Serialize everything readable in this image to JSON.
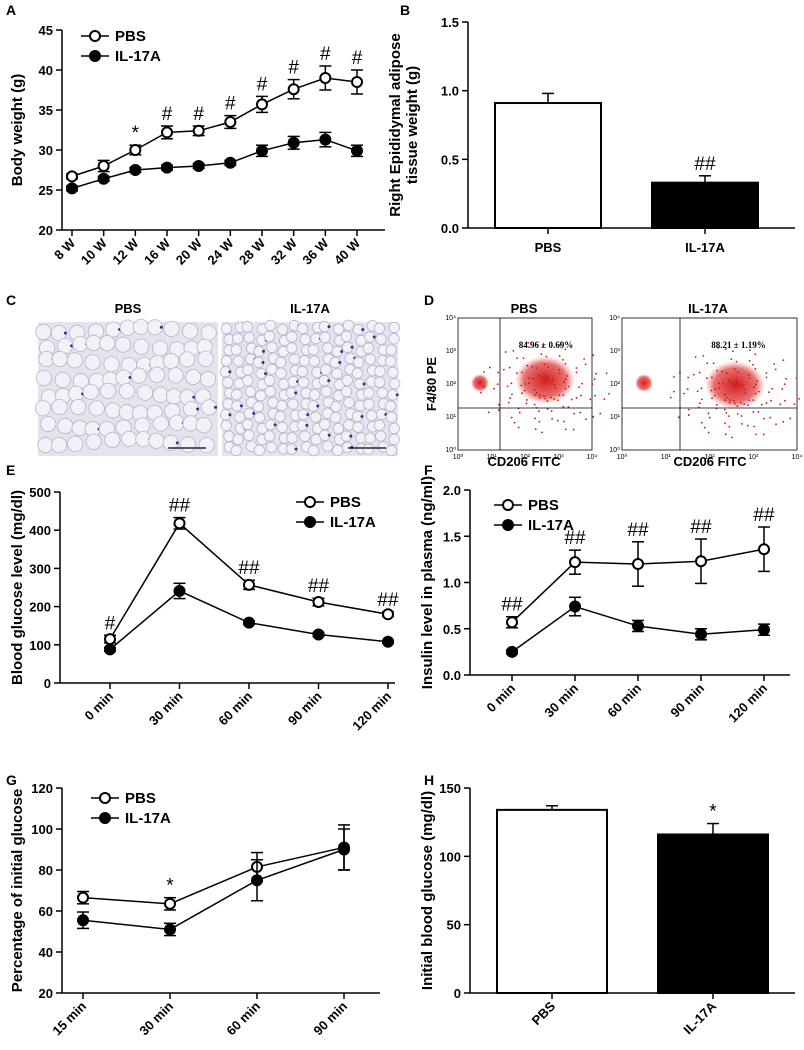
{
  "chart_data": [
    {
      "panel": "A",
      "type": "line",
      "ylabel": [
        "Body weight (g)"
      ],
      "categories": [
        "8 W",
        "10 W",
        "12 W",
        "16 W",
        "20 W",
        "24 W",
        "28 W",
        "32 W",
        "36 W",
        "40 W"
      ],
      "ylim": [
        20,
        45
      ],
      "yticks": [
        20,
        25,
        30,
        35,
        40,
        45
      ],
      "series": [
        {
          "name": "PBS",
          "color": "#000000",
          "marker_fill": "#ffffff",
          "values": [
            26.7,
            28,
            30,
            32.2,
            32.4,
            33.5,
            35.7,
            37.6,
            39,
            38.5
          ],
          "errors": [
            0.3,
            0.7,
            0.6,
            0.8,
            0.6,
            0.8,
            1,
            1.2,
            1.5,
            1.5
          ]
        },
        {
          "name": "IL-17A",
          "color": "#000000",
          "marker_fill": "#000000",
          "values": [
            25.2,
            26.4,
            27.5,
            27.8,
            28,
            28.4,
            29.9,
            30.9,
            31.3,
            29.9
          ],
          "errors": [
            0.3,
            0.3,
            0.3,
            0.3,
            0.3,
            0.3,
            0.7,
            0.8,
            0.9,
            0.7
          ]
        }
      ],
      "annotations": [
        null,
        null,
        "*",
        "#",
        "#",
        "#",
        "#",
        "#",
        "#",
        "#"
      ]
    },
    {
      "panel": "B",
      "type": "bar",
      "ylabel": [
        "Right Epididymal adipose",
        "tissue weight (g)"
      ],
      "categories": [
        "PBS",
        "IL-17A"
      ],
      "values": [
        0.91,
        0.33
      ],
      "errors": [
        0.07,
        0.05
      ],
      "colors": [
        "#ffffff",
        "#000000"
      ],
      "ylim": [
        0,
        1.5
      ],
      "yticks": [
        {
          "value": 0,
          "label": "0.0"
        },
        {
          "value": 0.5,
          "label": "0.5"
        },
        {
          "value": 1,
          "label": "1.0"
        },
        {
          "value": 1.5,
          "label": "1.5"
        }
      ],
      "annotations": [
        null,
        "##"
      ]
    },
    {
      "panel": "E",
      "type": "line",
      "ylabel": [
        "Blood glucose level (mg/dl)"
      ],
      "categories": [
        "0 min",
        "30 min",
        "60 min",
        "90 min",
        "120 min"
      ],
      "ylim": [
        0,
        500
      ],
      "yticks": [
        0,
        100,
        200,
        300,
        400,
        500
      ],
      "series": [
        {
          "name": "PBS",
          "color": "#000000",
          "marker_fill": "#ffffff",
          "values": [
            115,
            418,
            257,
            212,
            180
          ],
          "errors": [
            10,
            15,
            12,
            10,
            6
          ]
        },
        {
          "name": "IL-17A",
          "color": "#000000",
          "marker_fill": "#000000",
          "values": [
            88,
            241,
            158,
            127,
            108
          ],
          "errors": [
            5,
            20,
            5,
            5,
            4
          ]
        }
      ],
      "annotations": [
        "#",
        "##",
        "##",
        "##",
        "##"
      ]
    },
    {
      "panel": "F",
      "type": "line",
      "ylabel": [
        "Insulin level in plasma (ng/ml)"
      ],
      "categories": [
        "0 min",
        "30 min",
        "60 min",
        "90 min",
        "120 min"
      ],
      "ylim": [
        0,
        2
      ],
      "yticks": [
        {
          "value": 0,
          "label": "0.0"
        },
        {
          "value": 0.5,
          "label": "0.5"
        },
        {
          "value": 1,
          "label": "1.0"
        },
        {
          "value": 1.5,
          "label": "1.5"
        },
        {
          "value": 2,
          "label": "2.0"
        }
      ],
      "series": [
        {
          "name": "PBS",
          "color": "#000000",
          "marker_fill": "#ffffff",
          "values": [
            0.57,
            1.22,
            1.2,
            1.23,
            1.36
          ],
          "errors": [
            0.06,
            0.13,
            0.24,
            0.24,
            0.24
          ]
        },
        {
          "name": "IL-17A",
          "color": "#000000",
          "marker_fill": "#000000",
          "values": [
            0.25,
            0.74,
            0.53,
            0.44,
            0.49
          ],
          "errors": [
            0.02,
            0.1,
            0.06,
            0.06,
            0.06
          ]
        }
      ],
      "annotations": [
        "##",
        "##",
        "##",
        "##",
        "##"
      ]
    },
    {
      "panel": "G",
      "type": "line",
      "ylabel": [
        "Percentage of initial glucose"
      ],
      "categories": [
        "15 min",
        "30 min",
        "60 min",
        "90 min"
      ],
      "ylim": [
        20,
        120
      ],
      "yticks": [
        20,
        40,
        60,
        80,
        100,
        120
      ],
      "series": [
        {
          "name": "PBS",
          "color": "#000000",
          "marker_fill": "#ffffff",
          "values": [
            66.5,
            63.5,
            81.5,
            91
          ],
          "errors": [
            3,
            3,
            7,
            11
          ]
        },
        {
          "name": "IL-17A",
          "color": "#000000",
          "marker_fill": "#000000",
          "values": [
            55.5,
            51,
            75,
            90
          ],
          "errors": [
            4,
            3,
            10,
            10
          ]
        }
      ],
      "annotations": [
        null,
        "*",
        null,
        null
      ]
    },
    {
      "panel": "H",
      "type": "bar",
      "ylabel": [
        "Initial blood glucose (mg/dl)"
      ],
      "categories": [
        "PBS",
        "IL-17A"
      ],
      "values": [
        134,
        116
      ],
      "errors": [
        3,
        8
      ],
      "colors": [
        "#ffffff",
        "#000000"
      ],
      "ylim": [
        0,
        150
      ],
      "yticks": [
        0,
        50,
        100,
        150
      ],
      "annotations": [
        null,
        "*"
      ]
    }
  ],
  "panel_c": {
    "panel": "C",
    "titles": [
      "PBS",
      "IL-17A"
    ]
  },
  "panel_d": {
    "panel": "D",
    "titles": [
      "PBS",
      "IL-17A"
    ],
    "percentages": [
      "84.96 ± 0.69%",
      "88.21 ± 1.19%"
    ],
    "ylabel": "F4/80 PE",
    "xlabel": "CD206 FITC",
    "ticks": [
      "10⁰",
      "10¹",
      "10²",
      "10³",
      "10⁴"
    ]
  }
}
